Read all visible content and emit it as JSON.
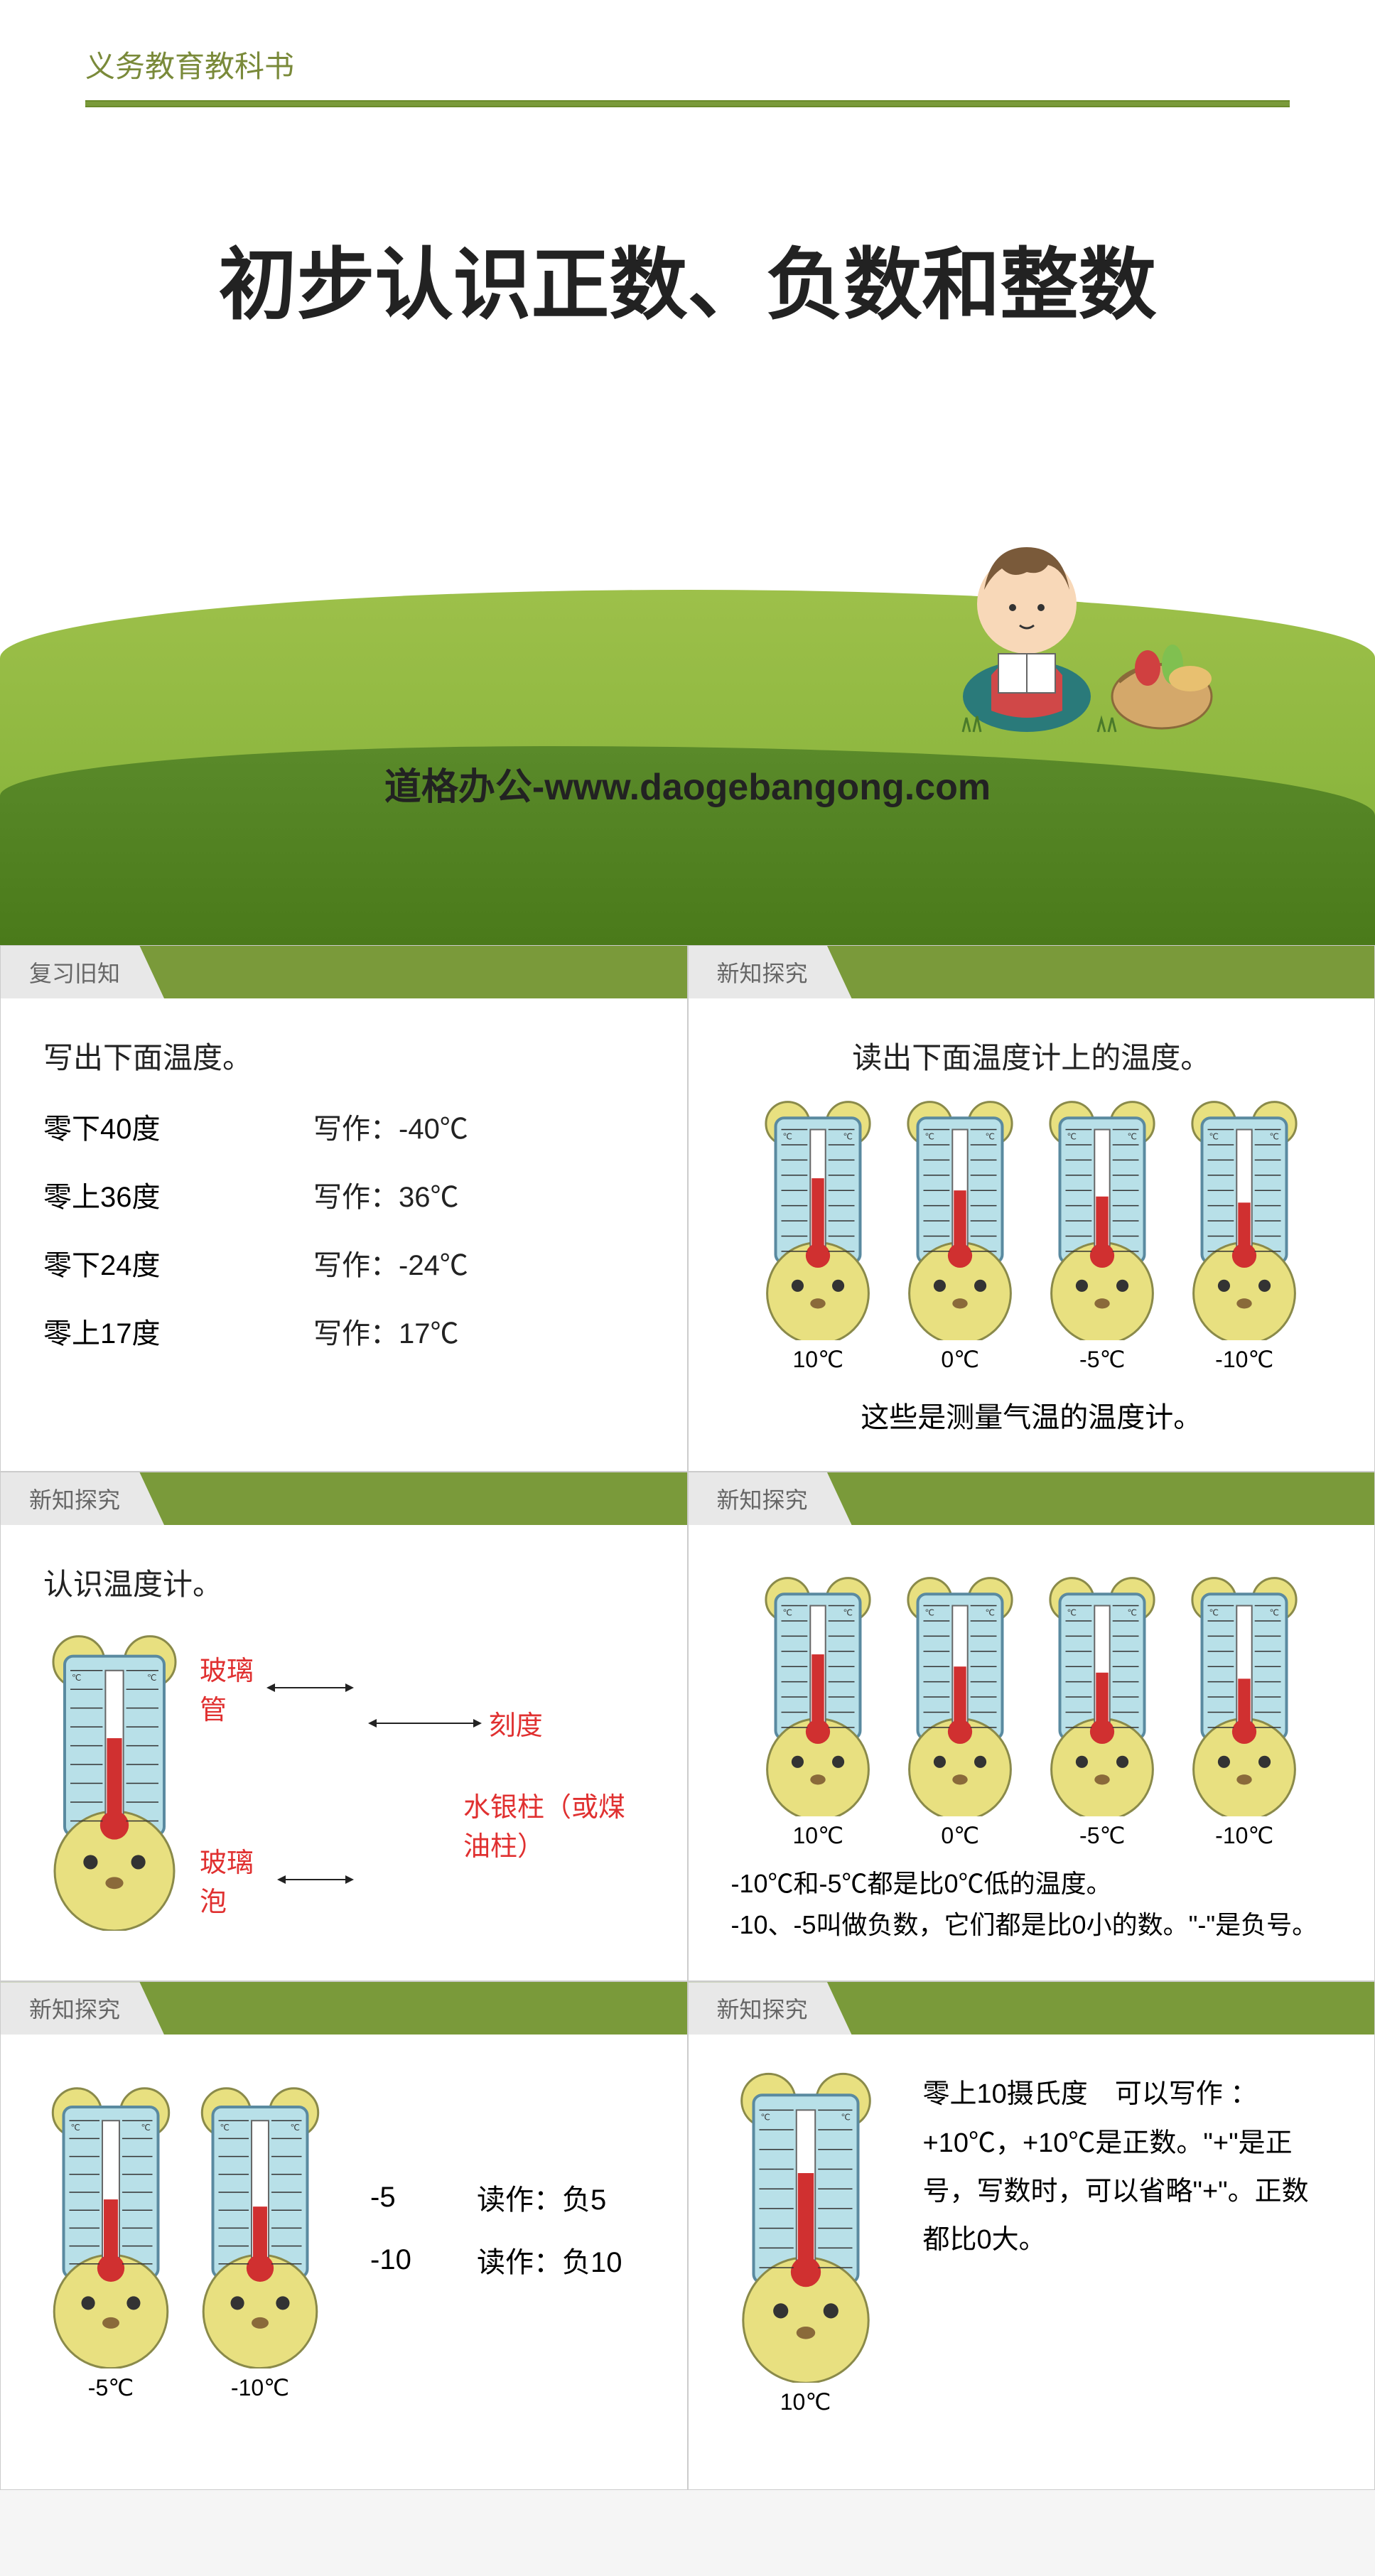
{
  "colors": {
    "header_green": "#7a9a3a",
    "grass_light": "#9dc04a",
    "grass_dark": "#5a8a2a",
    "tab_bg": "#e8e8e8",
    "label_red": "#e03030",
    "thermo_body": "#b8e0e8",
    "thermo_border": "#5a8aa0",
    "bear_fill": "#e8e080",
    "bear_stroke": "#8a8a4a",
    "mercury": "#d03030"
  },
  "title_slide": {
    "header": "义务教育教科书",
    "main_title": "初步认识正数、负数和整数",
    "watermark": "道格办公-www.daogebangong.com"
  },
  "panels": {
    "p1": {
      "tab": "复习旧知",
      "instruction": "写出下面温度。",
      "rows": [
        {
          "label": "零下40度",
          "write": "写作：-40℃"
        },
        {
          "label": "零上36度",
          "write": "写作：36℃"
        },
        {
          "label": "零下24度",
          "write": "写作：-24℃"
        },
        {
          "label": "零上17度",
          "write": "写作：17℃"
        }
      ]
    },
    "p2": {
      "tab": "新知探究",
      "instruction": "读出下面温度计上的温度。",
      "thermos": [
        {
          "caption": "10℃",
          "level": 0.6
        },
        {
          "caption": "0℃",
          "level": 0.5
        },
        {
          "caption": "-5℃",
          "level": 0.45
        },
        {
          "caption": "-10℃",
          "level": 0.4
        }
      ],
      "note": "这些是测量气温的温度计。"
    },
    "p3": {
      "tab": "新知探究",
      "instruction": "认识温度计。",
      "labels": {
        "glass_tube": "玻璃管",
        "scale": "刻度",
        "mercury": "水银柱（或煤油柱）",
        "bulb": "玻璃泡"
      }
    },
    "p4": {
      "tab": "新知探究",
      "thermos": [
        {
          "caption": "10℃",
          "level": 0.6
        },
        {
          "caption": "0℃",
          "level": 0.5
        },
        {
          "caption": "-5℃",
          "level": 0.45
        },
        {
          "caption": "-10℃",
          "level": 0.4
        }
      ],
      "explain": "-10℃和-5℃都是比0℃低的温度。\n-10、-5叫做负数，它们都是比0小的数。\"-\"是负号。"
    },
    "p5": {
      "tab": "新知探究",
      "thermos": [
        {
          "caption": "-5℃",
          "level": 0.45
        },
        {
          "caption": "-10℃",
          "level": 0.4
        }
      ],
      "reads": [
        {
          "val": "-5",
          "text": "读作：负5"
        },
        {
          "val": "-10",
          "text": "读作：负10"
        }
      ]
    },
    "p6": {
      "tab": "新知探究",
      "thermo": {
        "caption": "10℃",
        "level": 0.6
      },
      "text": "零上10摄氏度　可以写作 ：+10℃，+10℃是正数。\"+\"是正号，写数时，可以省略\"+\"。正数都比0大。"
    }
  }
}
